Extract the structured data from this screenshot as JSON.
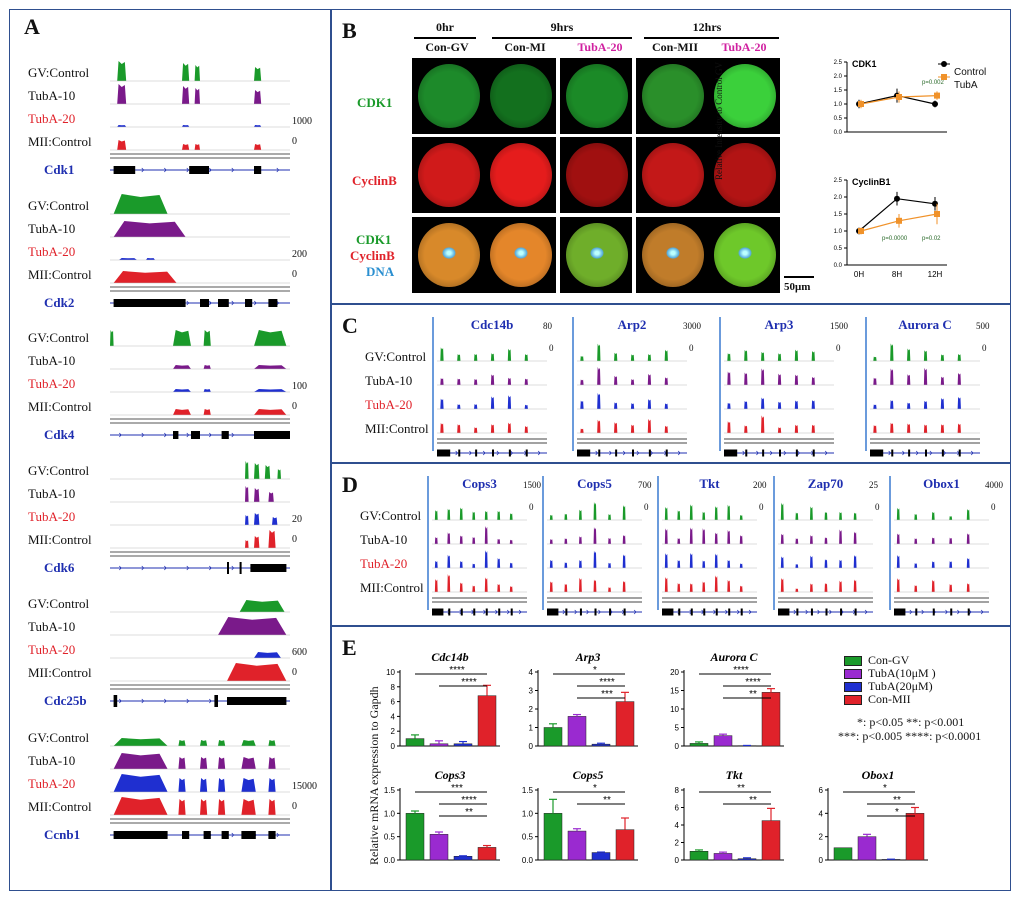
{
  "colors": {
    "control": "#1a9a2a",
    "tuba10": "#7a1a8a",
    "tuba20": "#1f2fd0",
    "mii": "#e0222a",
    "orange": "#f0922a",
    "border": "#2f4f8f"
  },
  "panel_a": {
    "label": "A",
    "tracks": [
      "GV:Control",
      "TubA-10",
      "TubA-20",
      "MII:Control"
    ],
    "genes": [
      {
        "name": "Cdk1",
        "scale_max": "1000",
        "scale_min": "0"
      },
      {
        "name": "Cdk2",
        "scale_max": "200",
        "scale_min": "0"
      },
      {
        "name": "Cdk4",
        "scale_max": "100",
        "scale_min": "0"
      },
      {
        "name": "Cdk6",
        "scale_max": "20",
        "scale_min": "0"
      },
      {
        "name": "Cdc25b",
        "scale_max": "600",
        "scale_min": "0"
      },
      {
        "name": "Ccnb1",
        "scale_max": "15000",
        "scale_min": "0"
      }
    ]
  },
  "panel_b": {
    "label": "B",
    "timepoints": [
      "0hr",
      "9hrs",
      "12hrs"
    ],
    "conditions": [
      "Con-GV",
      "Con-MI",
      "TubA-20",
      "Con-MII",
      "TubA-20"
    ],
    "rows": [
      "CDK1",
      "CyclinB"
    ],
    "merge_row": {
      "l1": "CDK1",
      "l2": "CyclinB",
      "l3": "DNA"
    },
    "scalebar": "50μm",
    "plot_ylabel": "Relative Intensity to Control GV",
    "legend": [
      "Control",
      "TubA"
    ]
  },
  "panel_c": {
    "label": "C",
    "tracks": [
      "GV:Control",
      "TubA-10",
      "TubA-20",
      "MII:Control"
    ],
    "genes": [
      {
        "name": "Cdc14b",
        "scale_max": "80",
        "scale_min": "0"
      },
      {
        "name": "Arp2",
        "scale_max": "3000",
        "scale_min": "0"
      },
      {
        "name": "Arp3",
        "scale_max": "1500",
        "scale_min": "0"
      },
      {
        "name": "Aurora C",
        "scale_max": "500",
        "scale_min": "0"
      }
    ]
  },
  "panel_d": {
    "label": "D",
    "tracks": [
      "GV:Control",
      "TubA-10",
      "TubA-20",
      "MII:Control"
    ],
    "genes": [
      {
        "name": "Cops3",
        "scale_max": "1500",
        "scale_min": "0"
      },
      {
        "name": "Cops5",
        "scale_max": "700",
        "scale_min": "0"
      },
      {
        "name": "Tkt",
        "scale_max": "200",
        "scale_min": "0"
      },
      {
        "name": "Zap70",
        "scale_max": "25",
        "scale_min": "0"
      },
      {
        "name": "Obox1",
        "scale_max": "4000",
        "scale_min": "0"
      }
    ]
  },
  "panel_e": {
    "label": "E",
    "ylabel": "Relative mRNA expression to Gapdh",
    "legend": [
      "Con-GV",
      "TubA(10μM )",
      "TubA(20μM)",
      "Con-MII"
    ],
    "sig_notes": [
      "*: p<0.05 **: p<0.001",
      "***: p<0.005 ****: p<0.0001"
    ]
  },
  "chart_data": [
    {
      "type": "line",
      "title": "CDK1",
      "x": [
        "0H",
        "8H",
        "12H"
      ],
      "ylim": [
        0,
        2.5
      ],
      "ylabel": "Relative Intensity to Control GV",
      "series": [
        {
          "name": "Control",
          "values": [
            1.0,
            1.3,
            1.0
          ],
          "err": [
            0.15,
            0.25,
            0.12
          ]
        },
        {
          "name": "TubA",
          "values": [
            1.0,
            1.25,
            1.3
          ],
          "err": [
            0.15,
            0.2,
            0.15
          ]
        }
      ],
      "annotations": [
        "p=0.002"
      ]
    },
    {
      "type": "line",
      "title": "CyclinB1",
      "x": [
        "0H",
        "8H",
        "12H"
      ],
      "ylim": [
        0,
        2.5
      ],
      "ylabel": "Relative Intensity to Control GV",
      "series": [
        {
          "name": "Control",
          "values": [
            1.0,
            1.95,
            1.8
          ],
          "err": [
            0.1,
            0.2,
            0.2
          ]
        },
        {
          "name": "TubA",
          "values": [
            1.0,
            1.3,
            1.5
          ],
          "err": [
            0.1,
            0.2,
            0.3
          ]
        }
      ],
      "annotations": [
        "p=0.0000",
        "p=0.02"
      ]
    },
    {
      "type": "bar",
      "title": "Cdc14b",
      "categories": [
        "Con-GV",
        "TubA(10μM )",
        "TubA(20μM)",
        "Con-MII"
      ],
      "values": [
        1.0,
        0.3,
        0.3,
        6.8
      ],
      "err": [
        0.5,
        0.4,
        0.3,
        1.4
      ],
      "ylim": [
        0,
        10
      ],
      "yticks": [
        0,
        2,
        4,
        6,
        8,
        10
      ],
      "sig": [
        "****",
        "****"
      ]
    },
    {
      "type": "bar",
      "title": "Arp3",
      "categories": [
        "Con-GV",
        "TubA(10μM )",
        "TubA(20μM)",
        "Con-MII"
      ],
      "values": [
        1.0,
        1.6,
        0.1,
        2.4
      ],
      "err": [
        0.2,
        0.1,
        0.05,
        0.5
      ],
      "ylim": [
        0,
        4
      ],
      "yticks": [
        0,
        1,
        2,
        3,
        4
      ],
      "sig": [
        "*",
        "****",
        "***"
      ]
    },
    {
      "type": "bar",
      "title": "Aurora C",
      "categories": [
        "Con-GV",
        "TubA(10μM )",
        "TubA(20μM)",
        "Con-MII"
      ],
      "values": [
        0.7,
        2.8,
        0.1,
        14.5
      ],
      "err": [
        0.4,
        0.4,
        0.05,
        1.0
      ],
      "ylim": [
        0,
        20
      ],
      "yticks": [
        0,
        5,
        10,
        15,
        20
      ],
      "sig": [
        "****",
        "****",
        "**"
      ]
    },
    {
      "type": "bar",
      "title": "Cops3",
      "categories": [
        "Con-GV",
        "TubA(10μM )",
        "TubA(20μM)",
        "Con-MII"
      ],
      "values": [
        1.0,
        0.55,
        0.08,
        0.27
      ],
      "err": [
        0.05,
        0.05,
        0.01,
        0.04
      ],
      "ylim": [
        0,
        1.5
      ],
      "yticks": [
        0.0,
        0.5,
        1.0,
        1.5
      ],
      "sig": [
        "***",
        "****",
        "**"
      ]
    },
    {
      "type": "bar",
      "title": "Cops5",
      "categories": [
        "Con-GV",
        "TubA(10μM )",
        "TubA(20μM)",
        "Con-MII"
      ],
      "values": [
        1.0,
        0.62,
        0.16,
        0.65
      ],
      "err": [
        0.3,
        0.05,
        0.01,
        0.25
      ],
      "ylim": [
        0,
        1.5
      ],
      "yticks": [
        0.0,
        0.5,
        1.0,
        1.5
      ],
      "sig": [
        "*",
        "**"
      ]
    },
    {
      "type": "bar",
      "title": "Tkt",
      "categories": [
        "Con-GV",
        "TubA(10μM )",
        "TubA(20μM)",
        "Con-MII"
      ],
      "values": [
        1.0,
        0.75,
        0.15,
        4.5
      ],
      "err": [
        0.15,
        0.15,
        0.1,
        1.4
      ],
      "ylim": [
        0,
        8
      ],
      "yticks": [
        0,
        2,
        4,
        6,
        8
      ],
      "sig": [
        "**",
        "**"
      ]
    },
    {
      "type": "bar",
      "title": "Obox1",
      "categories": [
        "Con-GV",
        "TubA(10μM )",
        "TubA(20μM)",
        "Con-MII"
      ],
      "values": [
        1.05,
        2.0,
        0.05,
        4.0
      ],
      "err": [
        0.0,
        0.2,
        0.02,
        0.5
      ],
      "ylim": [
        0,
        6
      ],
      "yticks": [
        0,
        2,
        4,
        6
      ],
      "sig": [
        "*",
        "**",
        "*"
      ]
    }
  ]
}
